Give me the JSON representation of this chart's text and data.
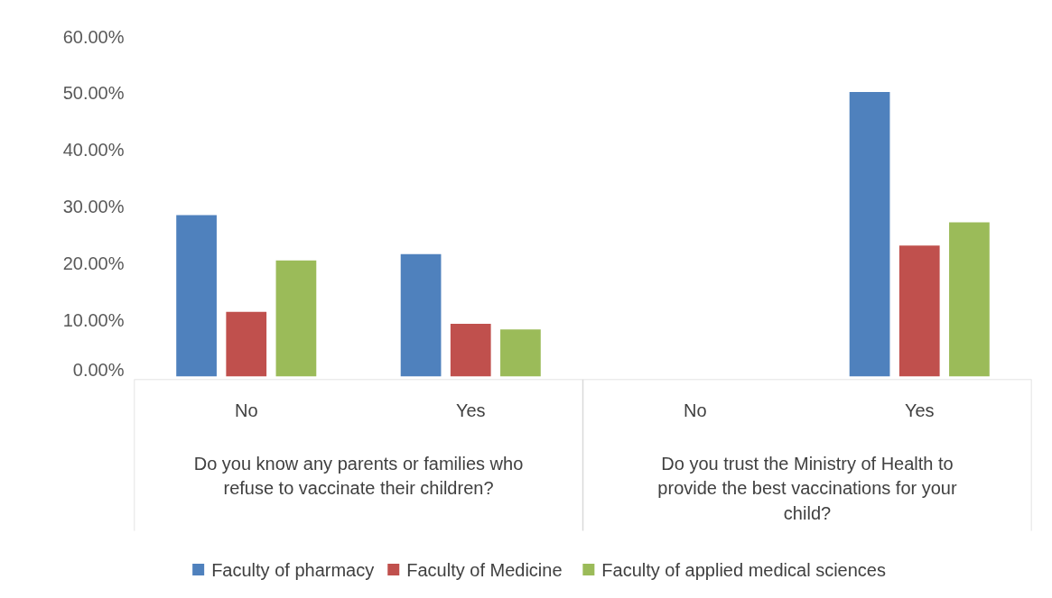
{
  "chart_data": {
    "type": "bar",
    "categories": [
      "No",
      "Yes",
      "No",
      "Yes"
    ],
    "annotations": [
      "Do you know any parents or families who refuse to vaccinate their children?",
      "Do you trust the Ministry of Health to provide the best vaccinations for your child?"
    ],
    "series": [
      {
        "name": "Faculty of pharmacy",
        "color": "#4f81bd",
        "values": [
          28.5,
          21.6,
          null,
          50.2
        ]
      },
      {
        "name": "Faculty of Medicine",
        "color": "#c0504d",
        "values": [
          11.4,
          9.3,
          null,
          23.1
        ]
      },
      {
        "name": "Faculty of applied medical sciences",
        "color": "#9bbb59",
        "values": [
          20.5,
          8.3,
          null,
          27.2
        ]
      }
    ],
    "ylim": [
      0,
      60
    ],
    "yticks": [
      {
        "value": 0,
        "label": "0.00%"
      },
      {
        "value": 10,
        "label": "10.00%"
      },
      {
        "value": 20,
        "label": "20.00%"
      },
      {
        "value": 30,
        "label": "30.00%"
      },
      {
        "value": 40,
        "label": "40.00%"
      },
      {
        "value": 50,
        "label": "50.00%"
      },
      {
        "value": 60,
        "label": "60.00%"
      }
    ],
    "grid": false,
    "legend": "bottom"
  }
}
